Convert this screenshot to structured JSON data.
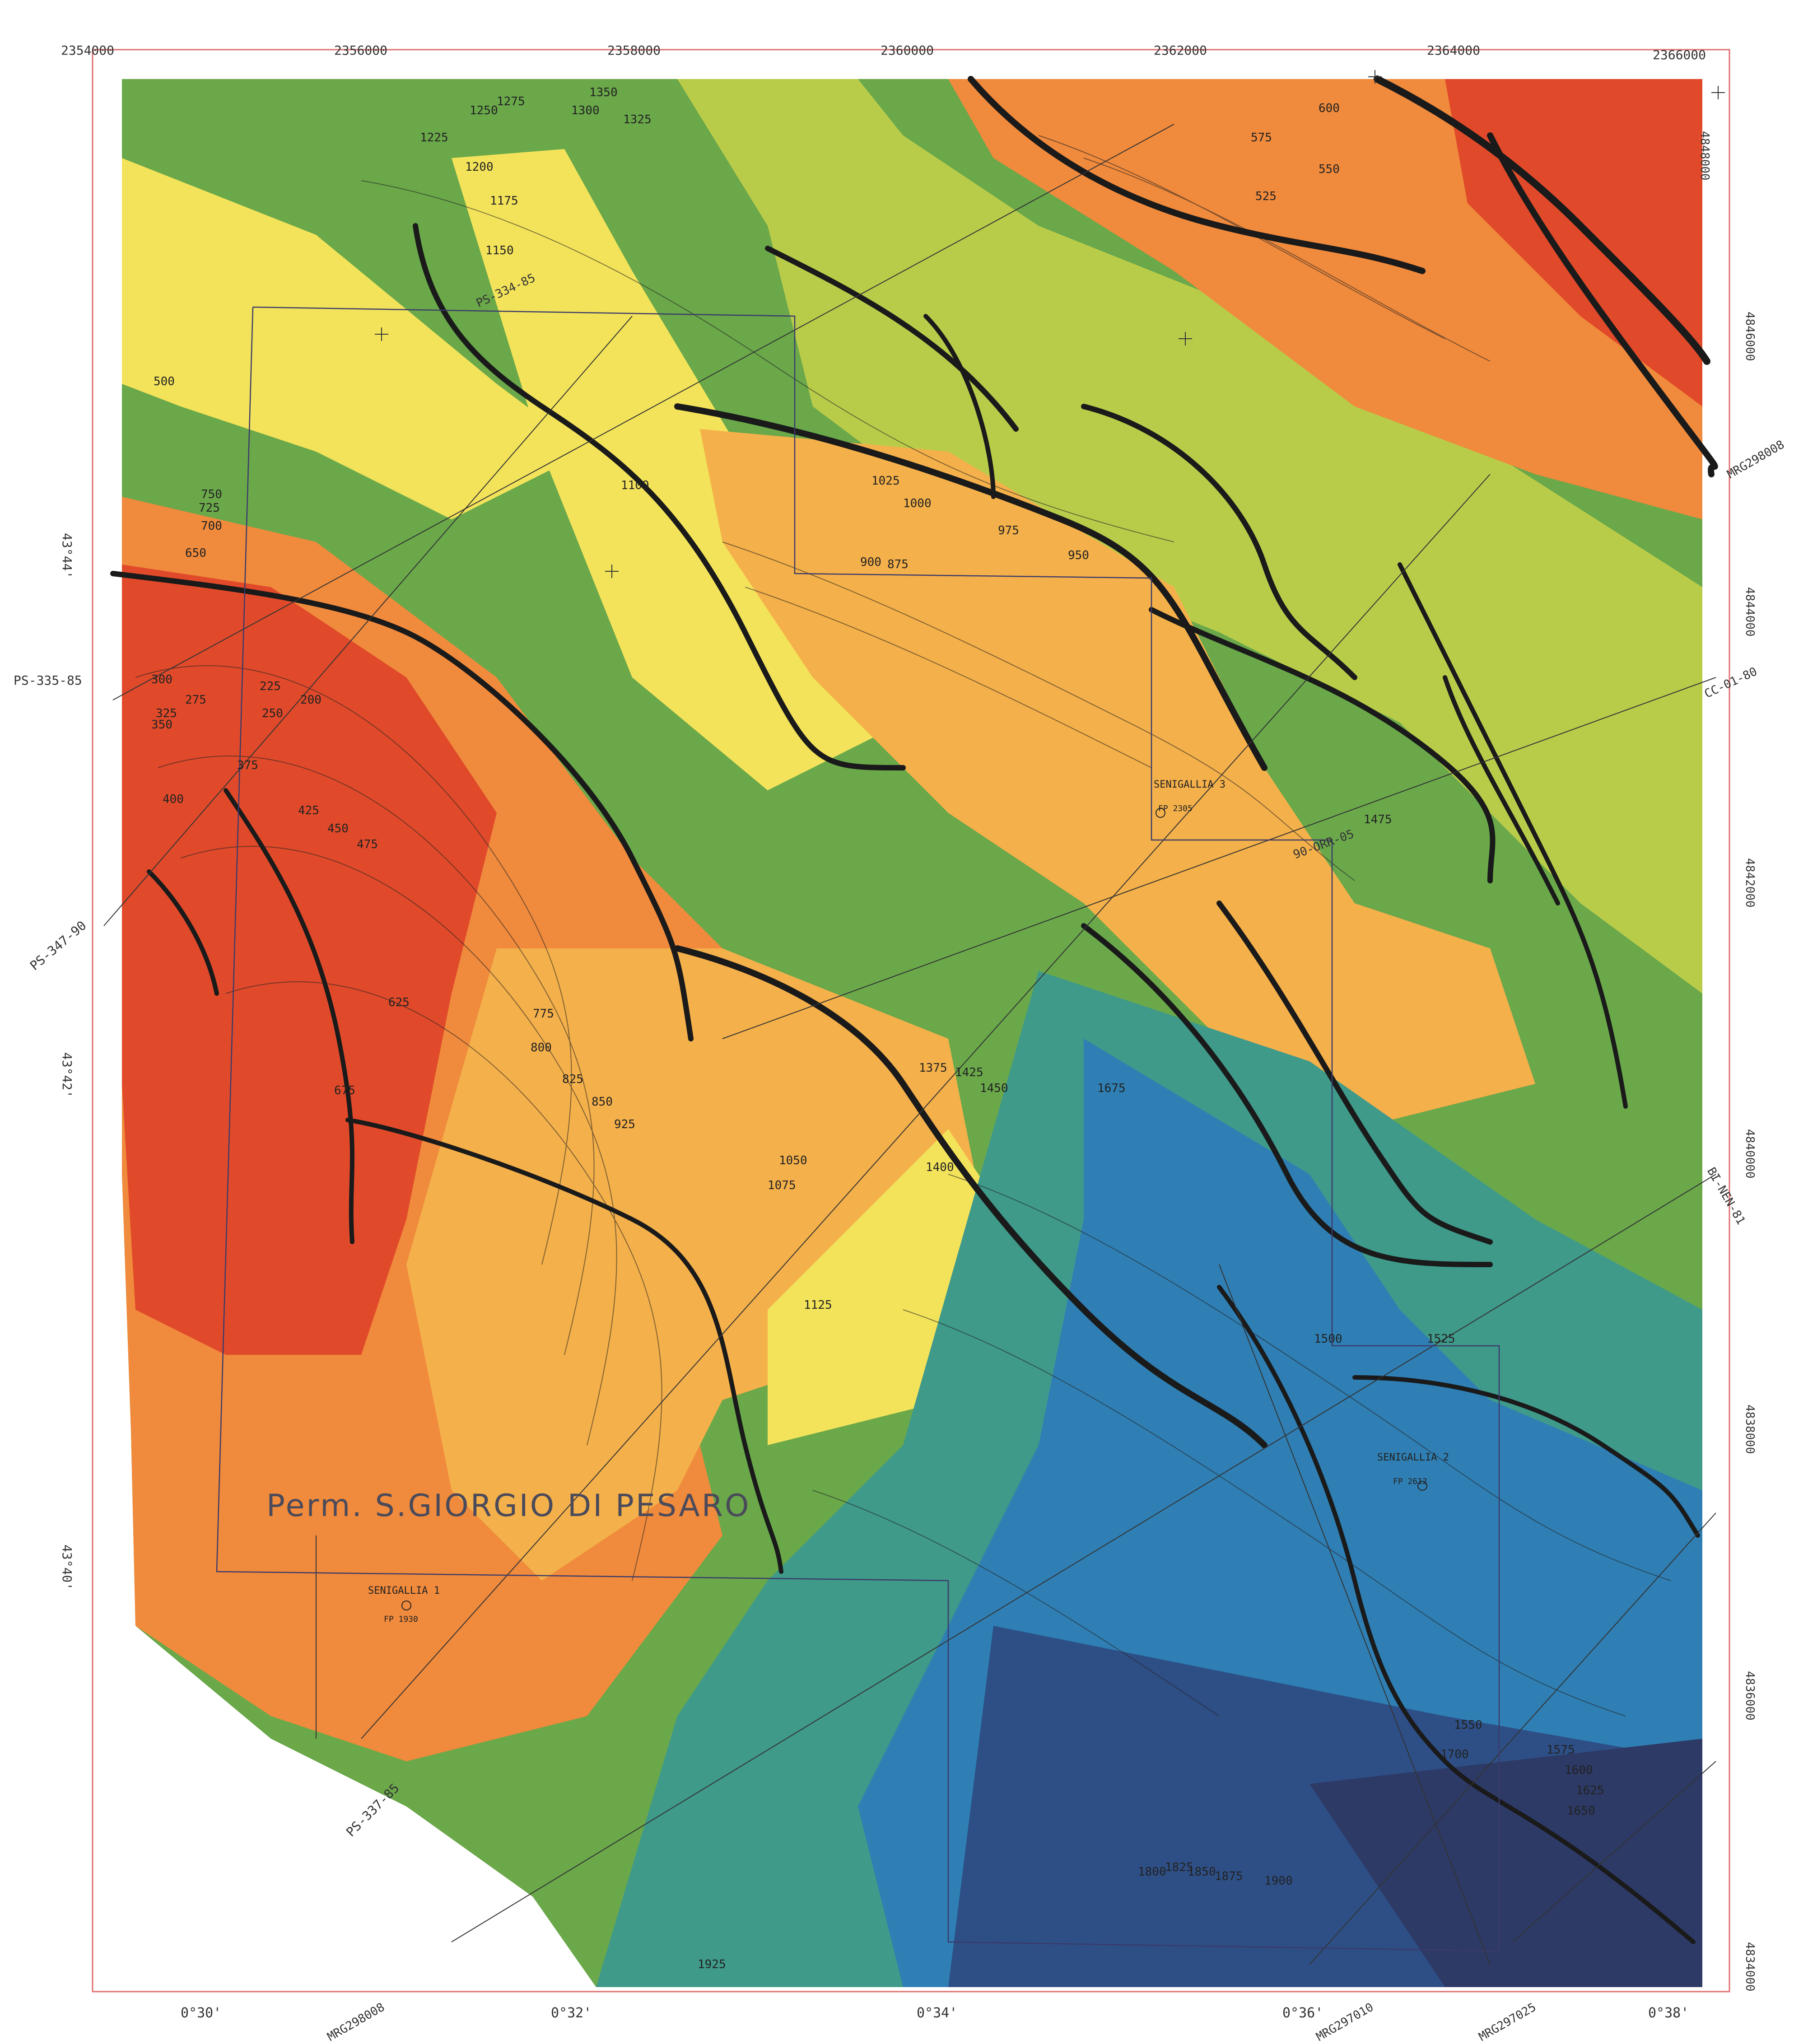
{
  "map": {
    "title": "Perm. S.GIORGIO DI PESARO",
    "colors": {
      "red": "#e04a2a",
      "orange": "#f08a3c",
      "light_orange": "#f4b04a",
      "yellow": "#f3e35a",
      "green_yellow": "#b9cc4a",
      "green": "#6aa84a",
      "teal": "#3f9a8a",
      "blue": "#2f7fb4",
      "dark_blue": "#2e4f86",
      "navy": "#2d3a66",
      "fault": "#1a1a1a",
      "frame": "#e07070"
    },
    "grid_top": [
      "2354000",
      "2356000",
      "2358000",
      "2360000",
      "2362000",
      "2364000",
      "2366000"
    ],
    "grid_right": [
      "4848000",
      "4846000",
      "4844000",
      "4842000",
      "4840000",
      "4838000",
      "4836000",
      "4834000"
    ],
    "lat_left": [
      "43°44'",
      "43°42'",
      "43°40'"
    ],
    "lon_bottom": [
      "0°30'",
      "0°32'",
      "0°34'",
      "0°36'",
      "0°38'"
    ],
    "seismic_lines": [
      "PS-335-85",
      "PS-347-90",
      "PS-337-85",
      "PS-334-85",
      "MRG298008",
      "MRG297010",
      "MRG297025",
      "MRG298008",
      "CC-01-80",
      "BI-NEN-81",
      "90-ORR-05"
    ],
    "wells": [
      {
        "name": "SENIGALLIA 1",
        "fp": "FP 1930"
      },
      {
        "name": "SENIGALLIA 2",
        "fp": "FP 2612"
      },
      {
        "name": "SENIGALLIA 3",
        "fp": "FP 2305"
      }
    ],
    "contour_labels": [
      "200",
      "225",
      "250",
      "275",
      "300",
      "325",
      "350",
      "375",
      "400",
      "425",
      "450",
      "475",
      "500",
      "525",
      "550",
      "575",
      "600",
      "625",
      "650",
      "675",
      "700",
      "725",
      "750",
      "775",
      "800",
      "825",
      "850",
      "875",
      "900",
      "925",
      "950",
      "975",
      "1000",
      "1025",
      "1050",
      "1075",
      "1100",
      "1125",
      "1150",
      "1175",
      "1200",
      "1225",
      "1250",
      "1275",
      "1300",
      "1325",
      "1350",
      "1375",
      "1400",
      "1425",
      "1450",
      "1475",
      "1500",
      "1525",
      "1550",
      "1575",
      "1600",
      "1625",
      "1650",
      "1675",
      "1700",
      "1800",
      "1825",
      "1850",
      "1875",
      "1900",
      "1925"
    ]
  }
}
